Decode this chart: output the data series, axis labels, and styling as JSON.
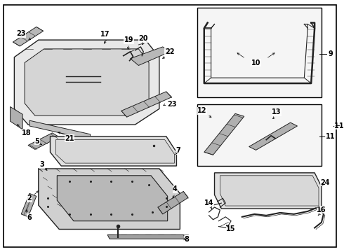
{
  "bg_color": "#ffffff",
  "lc": "#222222",
  "fig_width": 4.9,
  "fig_height": 3.6,
  "dpi": 100
}
